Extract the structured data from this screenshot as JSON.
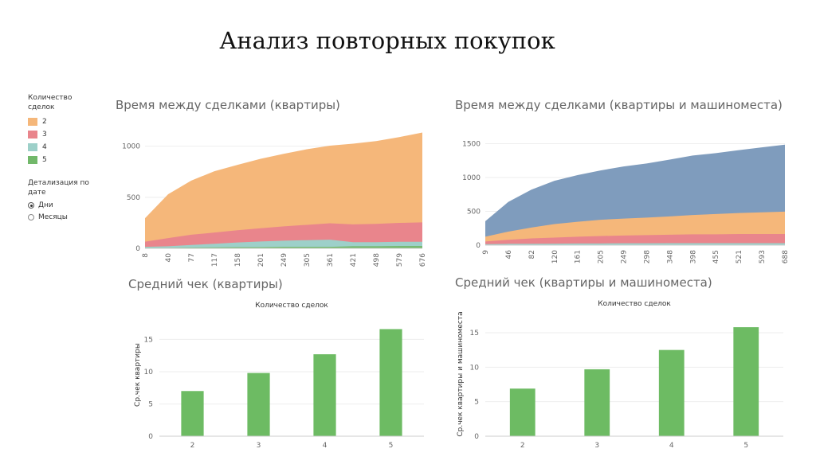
{
  "page": {
    "title": "Анализ повторных покупок"
  },
  "legend": {
    "title": "Количество сделок",
    "items": [
      {
        "label": "2",
        "color": "#f5b77a"
      },
      {
        "label": "3",
        "color": "#e9858c"
      },
      {
        "label": "4",
        "color": "#9dd0c9"
      },
      {
        "label": "5",
        "color": "#72b86a"
      }
    ]
  },
  "detail": {
    "title": "Детализация по дате",
    "options": [
      {
        "label": "Дни",
        "checked": true
      },
      {
        "label": "Месяцы",
        "checked": false
      }
    ]
  },
  "chart_data": [
    {
      "type": "area",
      "title": "Время между сделками (квартиры)",
      "x_ticks": [
        "8",
        "40",
        "77",
        "117",
        "158",
        "201",
        "249",
        "305",
        "361",
        "421",
        "498",
        "579",
        "676"
      ],
      "ylim": [
        0,
        1200
      ],
      "y_ticks": [
        0,
        500,
        1000
      ],
      "grid": true,
      "series": [
        {
          "name": "2",
          "color": "#f5b77a",
          "x": [
            0,
            1,
            2,
            3,
            4,
            5,
            6,
            7,
            8,
            9,
            10,
            11,
            12
          ],
          "values": [
            230,
            430,
            530,
            600,
            640,
            680,
            710,
            740,
            760,
            790,
            810,
            840,
            880
          ]
        },
        {
          "name": "3",
          "color": "#e9858c",
          "x": [
            0,
            1,
            2,
            3,
            4,
            5,
            6,
            7,
            8,
            9,
            10,
            11,
            12
          ],
          "values": [
            50,
            80,
            100,
            110,
            120,
            130,
            140,
            150,
            160,
            175,
            180,
            185,
            190
          ]
        },
        {
          "name": "4",
          "color": "#9dd0c9",
          "x": [
            0,
            1,
            2,
            3,
            4,
            5,
            6,
            7,
            8,
            9,
            10,
            11,
            12
          ],
          "values": [
            10,
            15,
            25,
            35,
            45,
            55,
            60,
            65,
            70,
            40,
            40,
            42,
            42
          ]
        },
        {
          "name": "5",
          "color": "#72b86a",
          "x": [
            0,
            1,
            2,
            3,
            4,
            5,
            6,
            7,
            8,
            9,
            10,
            11,
            12
          ],
          "values": [
            5,
            5,
            8,
            10,
            12,
            12,
            15,
            15,
            15,
            20,
            20,
            22,
            22
          ]
        }
      ]
    },
    {
      "type": "area",
      "title": "Время между сделками (квартиры и машиноместа)",
      "x_ticks": [
        "9",
        "46",
        "82",
        "120",
        "161",
        "205",
        "249",
        "298",
        "348",
        "398",
        "455",
        "521",
        "593",
        "688"
      ],
      "ylim": [
        0,
        1800
      ],
      "y_ticks": [
        0,
        500,
        1000,
        1500
      ],
      "grid": true,
      "series": [
        {
          "name": "2",
          "color": "#7f9cbd",
          "x": [
            0,
            1,
            2,
            3,
            4,
            5,
            6,
            7,
            8,
            9,
            10,
            11,
            12,
            13
          ],
          "values": [
            230,
            440,
            560,
            640,
            690,
            730,
            770,
            800,
            840,
            880,
            900,
            930,
            960,
            990
          ]
        },
        {
          "name": "3",
          "color": "#f5b77a",
          "x": [
            0,
            1,
            2,
            3,
            4,
            5,
            6,
            7,
            8,
            9,
            10,
            11,
            12,
            13
          ],
          "values": [
            70,
            120,
            160,
            200,
            220,
            240,
            250,
            260,
            270,
            285,
            300,
            310,
            320,
            330
          ]
        },
        {
          "name": "4",
          "color": "#e9858c",
          "x": [
            0,
            1,
            2,
            3,
            4,
            5,
            6,
            7,
            8,
            9,
            10,
            11,
            12,
            13
          ],
          "values": [
            40,
            60,
            80,
            90,
            100,
            110,
            115,
            120,
            125,
            130,
            130,
            135,
            135,
            135
          ]
        },
        {
          "name": "5",
          "color": "#9dd0c9",
          "x": [
            0,
            1,
            2,
            3,
            4,
            5,
            6,
            7,
            8,
            9,
            10,
            11,
            12,
            13
          ],
          "values": [
            15,
            20,
            20,
            22,
            25,
            25,
            28,
            28,
            30,
            30,
            30,
            30,
            30,
            30
          ]
        }
      ]
    },
    {
      "type": "bar",
      "title": "Средний чек (квартиры)",
      "top_label": "Количество сделок",
      "ylabel": "Ср.чек квартиры",
      "categories": [
        "2",
        "3",
        "4",
        "5"
      ],
      "values": [
        7.0,
        9.8,
        12.7,
        16.6
      ],
      "ylim": [
        0,
        19
      ],
      "y_ticks": [
        0,
        5,
        10,
        15
      ],
      "grid": true,
      "bar_color": "#6dbb63"
    },
    {
      "type": "bar",
      "title": "Средний чек (квартиры и машиноместа)",
      "top_label": "Количество сделок",
      "ylabel": "Ср.чек квартиры и машиноместа",
      "categories": [
        "2",
        "3",
        "4",
        "5"
      ],
      "values": [
        6.9,
        9.7,
        12.5,
        15.8
      ],
      "ylim": [
        0,
        18
      ],
      "y_ticks": [
        0,
        5,
        10,
        15
      ],
      "grid": true,
      "bar_color": "#6dbb63"
    }
  ]
}
